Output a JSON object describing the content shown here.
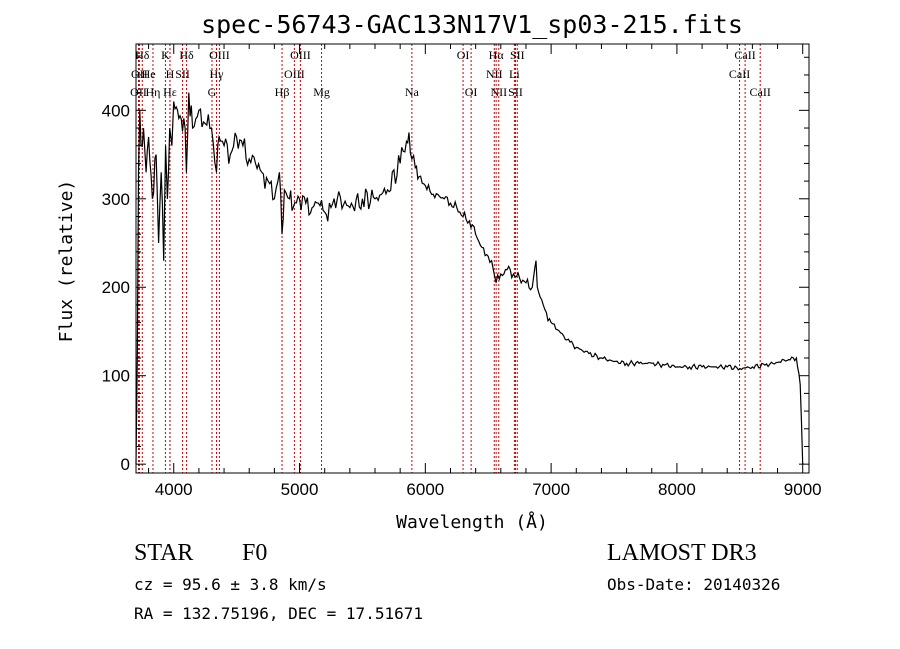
{
  "chart_data": {
    "type": "line",
    "title": "spec-56743-GAC133N17V1_sp03-215.fits",
    "xlabel": "Wavelength (Å)",
    "ylabel": "Flux (relative)",
    "xlim": [
      3700,
      9050
    ],
    "ylim": [
      -10,
      475
    ],
    "xticks": [
      4000,
      5000,
      6000,
      7000,
      8000,
      9000
    ],
    "yticks": [
      0,
      100,
      200,
      300,
      400
    ],
    "grid": false,
    "series": [
      {
        "name": "flux",
        "x": [
          3700,
          3710,
          3720,
          3730,
          3740,
          3760,
          3780,
          3800,
          3830,
          3860,
          3880,
          3900,
          3920,
          3935,
          3950,
          3968,
          3985,
          4000,
          4030,
          4060,
          4090,
          4101,
          4120,
          4150,
          4200,
          4250,
          4300,
          4340,
          4360,
          4400,
          4450,
          4500,
          4550,
          4600,
          4650,
          4700,
          4750,
          4800,
          4840,
          4861,
          4880,
          4920,
          4950,
          5000,
          5050,
          5100,
          5150,
          5200,
          5250,
          5300,
          5400,
          5500,
          5600,
          5700,
          5800,
          5850,
          5870,
          5893,
          5920,
          5950,
          6000,
          6050,
          6100,
          6150,
          6200,
          6250,
          6300,
          6350,
          6400,
          6450,
          6500,
          6540,
          6563,
          6600,
          6650,
          6700,
          6750,
          6800,
          6850,
          6880,
          6890,
          6900,
          6950,
          7000,
          7050,
          7100,
          7150,
          7200,
          7300,
          7400,
          7500,
          7600,
          7700,
          7800,
          7900,
          8000,
          8100,
          8200,
          8300,
          8400,
          8500,
          8600,
          8700,
          8800,
          8850,
          8900,
          8950,
          8980,
          9000
        ],
        "y": [
          0,
          120,
          330,
          400,
          360,
          380,
          330,
          370,
          300,
          350,
          250,
          330,
          230,
          360,
          300,
          380,
          360,
          410,
          400,
          390,
          380,
          330,
          420,
          380,
          400,
          385,
          380,
          330,
          370,
          360,
          350,
          370,
          360,
          345,
          340,
          330,
          320,
          300,
          330,
          260,
          310,
          300,
          290,
          300,
          295,
          290,
          295,
          285,
          290,
          300,
          290,
          300,
          300,
          310,
          340,
          365,
          375,
          345,
          335,
          325,
          315,
          305,
          305,
          300,
          295,
          290,
          280,
          275,
          260,
          245,
          235,
          220,
          205,
          215,
          220,
          215,
          210,
          205,
          200,
          230,
          200,
          195,
          175,
          160,
          152,
          145,
          138,
          132,
          125,
          120,
          116,
          114,
          114,
          114,
          112,
          110,
          110,
          110,
          110,
          110,
          108,
          110,
          112,
          115,
          118,
          118,
          120,
          90,
          0
        ]
      }
    ],
    "spectral_lines": [
      {
        "name": "Hδ",
        "wavelength": 3700
      },
      {
        "name": "OII",
        "wavelength": 3720
      },
      {
        "name": "OII",
        "wavelength": 3727
      },
      {
        "name": "He",
        "wavelength": 3750
      },
      {
        "name": "Hη",
        "wavelength": 3835
      },
      {
        "name": "K",
        "wavelength": 3934
      },
      {
        "name": "H",
        "wavelength": 3970
      },
      {
        "name": "Hε",
        "wavelength": 3970
      },
      {
        "name": "SII",
        "wavelength": 4070
      },
      {
        "name": "Hδ",
        "wavelength": 4102
      },
      {
        "name": "Hγ",
        "wavelength": 4340
      },
      {
        "name": "G",
        "wavelength": 4304
      },
      {
        "name": "OIII",
        "wavelength": 4363
      },
      {
        "name": "Hβ",
        "wavelength": 4861
      },
      {
        "name": "OIII",
        "wavelength": 4959
      },
      {
        "name": "OIII",
        "wavelength": 5007
      },
      {
        "name": "Mg",
        "wavelength": 5175
      },
      {
        "name": "Na",
        "wavelength": 5893
      },
      {
        "name": "OI",
        "wavelength": 6300
      },
      {
        "name": "OI",
        "wavelength": 6364
      },
      {
        "name": "NII",
        "wavelength": 6548
      },
      {
        "name": "Hα",
        "wavelength": 6563
      },
      {
        "name": "NII",
        "wavelength": 6584
      },
      {
        "name": "Li",
        "wavelength": 6708
      },
      {
        "name": "SII",
        "wavelength": 6717
      },
      {
        "name": "SII",
        "wavelength": 6731
      },
      {
        "name": "CaII",
        "wavelength": 8498
      },
      {
        "name": "CaII",
        "wavelength": 8542
      },
      {
        "name": "CaII",
        "wavelength": 8662
      }
    ],
    "line_labels": [
      {
        "text": "Hδ",
        "wavelength": 3750,
        "row": 1
      },
      {
        "text": "K",
        "wavelength": 3934,
        "row": 1
      },
      {
        "text": "Hδ",
        "wavelength": 4102,
        "row": 1
      },
      {
        "text": "OIII",
        "wavelength": 4363,
        "row": 1
      },
      {
        "text": "OIII",
        "wavelength": 5007,
        "row": 1
      },
      {
        "text": "OI",
        "wavelength": 6300,
        "row": 1
      },
      {
        "text": "Hα",
        "wavelength": 6563,
        "row": 1
      },
      {
        "text": "SII",
        "wavelength": 6731,
        "row": 1
      },
      {
        "text": "CaII",
        "wavelength": 8542,
        "row": 1
      },
      {
        "text": "OII",
        "wavelength": 3727,
        "row": 2
      },
      {
        "text": "He",
        "wavelength": 3800,
        "row": 2
      },
      {
        "text": "H",
        "wavelength": 3970,
        "row": 2
      },
      {
        "text": "SII",
        "wavelength": 4070,
        "row": 2
      },
      {
        "text": "Hγ",
        "wavelength": 4340,
        "row": 2
      },
      {
        "text": "OIII",
        "wavelength": 4959,
        "row": 2
      },
      {
        "text": "NII",
        "wavelength": 6548,
        "row": 2
      },
      {
        "text": "Li",
        "wavelength": 6708,
        "row": 2
      },
      {
        "text": "CaII",
        "wavelength": 8498,
        "row": 2
      },
      {
        "text": "OII",
        "wavelength": 3720,
        "row": 3
      },
      {
        "text": "Hη",
        "wavelength": 3835,
        "row": 3
      },
      {
        "text": "Hε",
        "wavelength": 3970,
        "row": 3
      },
      {
        "text": "G",
        "wavelength": 4304,
        "row": 3
      },
      {
        "text": "Hβ",
        "wavelength": 4861,
        "row": 3
      },
      {
        "text": "Mg",
        "wavelength": 5175,
        "row": 3
      },
      {
        "text": "Na",
        "wavelength": 5893,
        "row": 3
      },
      {
        "text": "OI",
        "wavelength": 6364,
        "row": 3
      },
      {
        "text": "NII",
        "wavelength": 6584,
        "row": 3
      },
      {
        "text": "SII",
        "wavelength": 6717,
        "row": 3
      },
      {
        "text": "CaII",
        "wavelength": 8662,
        "row": 3
      }
    ],
    "colors": {
      "spectrum": "#000000",
      "line_markers": "#cc0000",
      "axes": "#000000"
    }
  },
  "info": {
    "object_class": "STAR",
    "subclass": "F0",
    "redshift": "cz = 95.6 ± 3.8 km/s",
    "coords": "RA = 132.75196, DEC =  17.51671",
    "survey": "LAMOST DR3",
    "obs_date": "Obs-Date: 20140326"
  }
}
